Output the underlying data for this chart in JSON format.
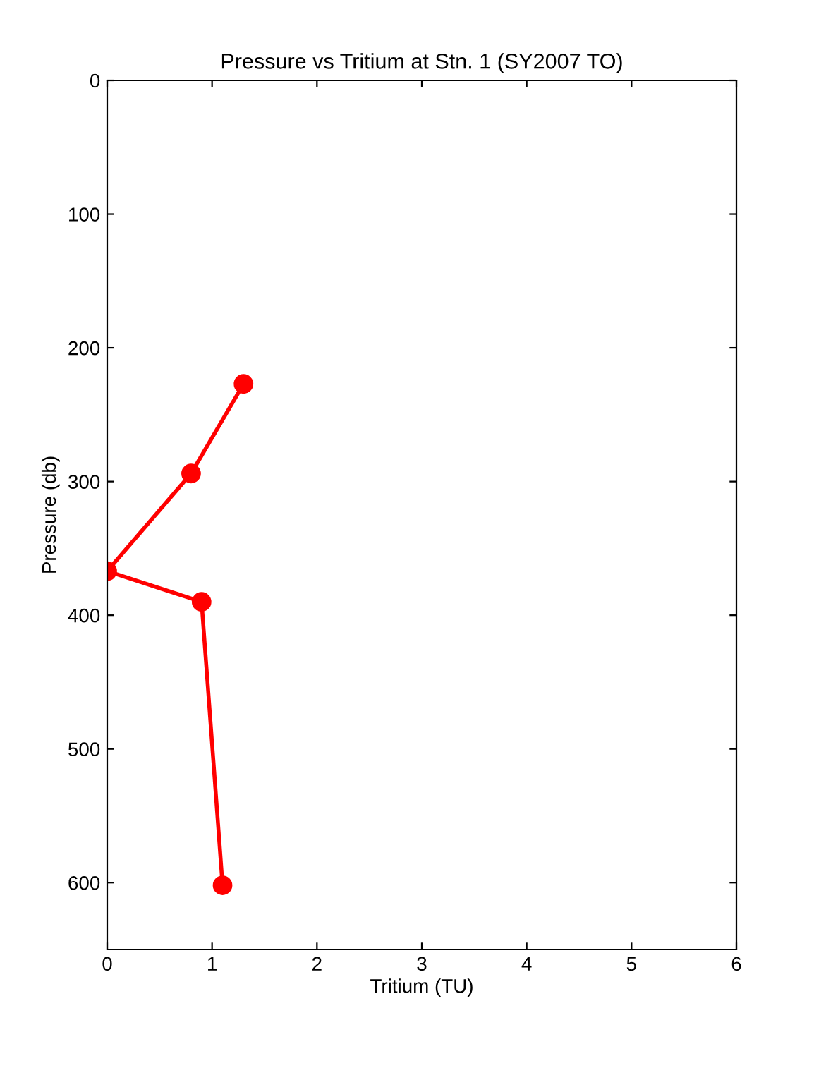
{
  "chart_data": {
    "type": "line",
    "title": "Pressure vs Tritium at Stn. 1 (SY2007 TO)",
    "xlabel": "Tritium (TU)",
    "ylabel": "Pressure (db)",
    "series": [
      {
        "color": "#ff0000",
        "x": [
          1.3,
          0.8,
          0.0,
          0.9,
          1.1
        ],
        "values": [
          227,
          294,
          367,
          390,
          602
        ]
      }
    ],
    "xlim": [
      0,
      6
    ],
    "xticks": [
      0,
      1,
      2,
      3,
      4,
      5,
      6
    ],
    "ylim": [
      650,
      0
    ],
    "yticks": [
      0,
      100,
      200,
      300,
      400,
      500,
      600
    ],
    "marker": "circle",
    "line_style": "solid",
    "grid": false,
    "legend": false
  }
}
